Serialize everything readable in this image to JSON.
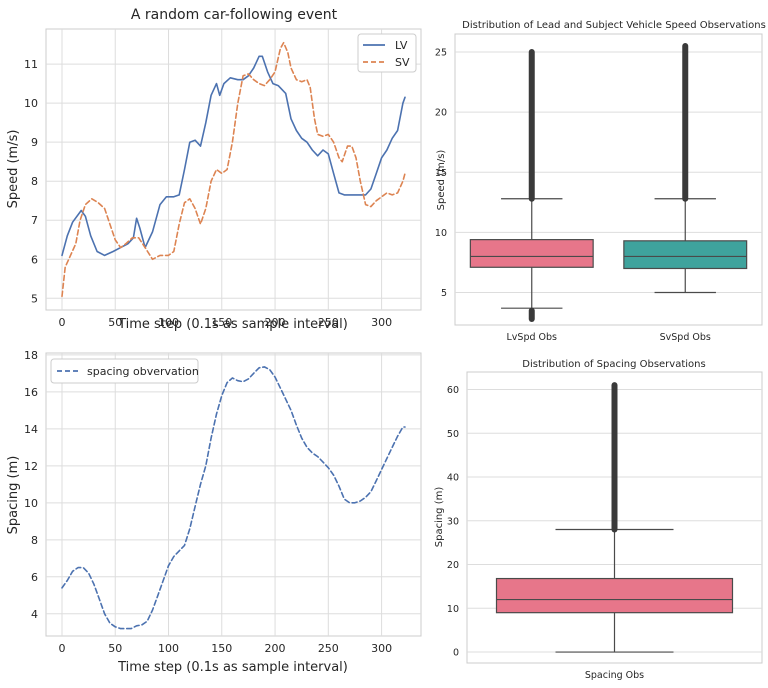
{
  "chart_data": [
    {
      "type": "line",
      "title": "A random car-following event",
      "xlabel": "Time step (0.1s as sample interval)",
      "ylabel": "Speed (m/s)",
      "xlim": [
        -15,
        337
      ],
      "ylim": [
        4.7,
        11.9
      ],
      "xticks": [
        0,
        50,
        100,
        150,
        200,
        250,
        300
      ],
      "yticks": [
        5,
        6,
        7,
        8,
        9,
        10,
        11
      ],
      "grid": true,
      "legend": "top-right",
      "series": [
        {
          "name": "LV",
          "color": "#4c72b0",
          "dash": "solid",
          "points": [
            [
              0,
              6.1
            ],
            [
              5,
              6.6
            ],
            [
              10,
              6.95
            ],
            [
              18,
              7.25
            ],
            [
              22,
              7.1
            ],
            [
              27,
              6.6
            ],
            [
              33,
              6.2
            ],
            [
              40,
              6.1
            ],
            [
              48,
              6.2
            ],
            [
              55,
              6.3
            ],
            [
              62,
              6.4
            ],
            [
              67,
              6.55
            ],
            [
              70,
              7.05
            ],
            [
              73,
              6.8
            ],
            [
              78,
              6.3
            ],
            [
              85,
              6.7
            ],
            [
              92,
              7.4
            ],
            [
              98,
              7.6
            ],
            [
              105,
              7.6
            ],
            [
              110,
              7.65
            ],
            [
              115,
              8.3
            ],
            [
              120,
              9.0
            ],
            [
              125,
              9.05
            ],
            [
              130,
              8.9
            ],
            [
              135,
              9.5
            ],
            [
              140,
              10.2
            ],
            [
              145,
              10.5
            ],
            [
              148,
              10.2
            ],
            [
              152,
              10.5
            ],
            [
              158,
              10.65
            ],
            [
              165,
              10.6
            ],
            [
              170,
              10.6
            ],
            [
              175,
              10.7
            ],
            [
              180,
              10.9
            ],
            [
              185,
              11.2
            ],
            [
              188,
              11.2
            ],
            [
              193,
              10.8
            ],
            [
              198,
              10.5
            ],
            [
              203,
              10.45
            ],
            [
              210,
              10.25
            ],
            [
              215,
              9.6
            ],
            [
              220,
              9.3
            ],
            [
              225,
              9.1
            ],
            [
              230,
              9.0
            ],
            [
              235,
              8.8
            ],
            [
              240,
              8.65
            ],
            [
              245,
              8.8
            ],
            [
              250,
              8.7
            ],
            [
              255,
              8.2
            ],
            [
              260,
              7.7
            ],
            [
              265,
              7.65
            ],
            [
              270,
              7.65
            ],
            [
              275,
              7.65
            ],
            [
              280,
              7.65
            ],
            [
              285,
              7.65
            ],
            [
              290,
              7.8
            ],
            [
              295,
              8.2
            ],
            [
              300,
              8.6
            ],
            [
              305,
              8.8
            ],
            [
              310,
              9.1
            ],
            [
              315,
              9.3
            ],
            [
              320,
              10.0
            ],
            [
              322,
              10.15
            ]
          ]
        },
        {
          "name": "SV",
          "color": "#dd8452",
          "dash": "dashed",
          "points": [
            [
              0,
              5.05
            ],
            [
              3,
              5.8
            ],
            [
              8,
              6.1
            ],
            [
              13,
              6.4
            ],
            [
              17,
              7.0
            ],
            [
              22,
              7.4
            ],
            [
              28,
              7.55
            ],
            [
              34,
              7.45
            ],
            [
              40,
              7.3
            ],
            [
              45,
              6.9
            ],
            [
              50,
              6.5
            ],
            [
              55,
              6.3
            ],
            [
              60,
              6.4
            ],
            [
              66,
              6.55
            ],
            [
              72,
              6.55
            ],
            [
              78,
              6.3
            ],
            [
              85,
              6.0
            ],
            [
              92,
              6.1
            ],
            [
              100,
              6.1
            ],
            [
              105,
              6.2
            ],
            [
              110,
              6.9
            ],
            [
              115,
              7.45
            ],
            [
              120,
              7.55
            ],
            [
              125,
              7.3
            ],
            [
              130,
              6.9
            ],
            [
              135,
              7.3
            ],
            [
              140,
              8.0
            ],
            [
              145,
              8.3
            ],
            [
              150,
              8.2
            ],
            [
              155,
              8.3
            ],
            [
              160,
              9.0
            ],
            [
              165,
              10.0
            ],
            [
              170,
              10.7
            ],
            [
              175,
              10.75
            ],
            [
              180,
              10.6
            ],
            [
              185,
              10.5
            ],
            [
              190,
              10.45
            ],
            [
              195,
              10.6
            ],
            [
              200,
              10.8
            ],
            [
              205,
              11.4
            ],
            [
              208,
              11.55
            ],
            [
              212,
              11.3
            ],
            [
              215,
              10.9
            ],
            [
              220,
              10.6
            ],
            [
              225,
              10.55
            ],
            [
              230,
              10.6
            ],
            [
              233,
              10.4
            ],
            [
              237,
              9.6
            ],
            [
              240,
              9.2
            ],
            [
              245,
              9.15
            ],
            [
              250,
              9.2
            ],
            [
              255,
              9.0
            ],
            [
              260,
              8.6
            ],
            [
              263,
              8.5
            ],
            [
              268,
              8.9
            ],
            [
              272,
              8.9
            ],
            [
              276,
              8.6
            ],
            [
              280,
              8.0
            ],
            [
              285,
              7.4
            ],
            [
              290,
              7.35
            ],
            [
              295,
              7.5
            ],
            [
              300,
              7.6
            ],
            [
              305,
              7.7
            ],
            [
              310,
              7.65
            ],
            [
              315,
              7.7
            ],
            [
              320,
              8.0
            ],
            [
              322,
              8.2
            ]
          ]
        }
      ]
    },
    {
      "type": "box",
      "title": "Distribution of Lead and Subject Vehicle Speed Observations",
      "xlabel": "",
      "ylabel": "Speed (m/s)",
      "ylim": [
        2.3,
        26.5
      ],
      "yticks": [
        5,
        10,
        15,
        20,
        25
      ],
      "grid": true,
      "categories": [
        "LvSpd Obs",
        "SvSpd Obs"
      ],
      "boxes": [
        {
          "category": "LvSpd Obs",
          "color": "#e7768a",
          "whisker_low": 3.7,
          "q1": 7.1,
          "median": 8.0,
          "q3": 9.4,
          "whisker_high": 12.8,
          "outliers_low": [
            2.8,
            3.5
          ],
          "outliers_high": [
            12.8,
            25.0
          ]
        },
        {
          "category": "SvSpd Obs",
          "color": "#3fa39d",
          "whisker_low": 5.0,
          "q1": 7.0,
          "median": 8.0,
          "q3": 9.3,
          "whisker_high": 12.8,
          "outliers_low": [],
          "outliers_high": [
            12.8,
            25.5
          ]
        }
      ]
    },
    {
      "type": "line",
      "title": "",
      "xlabel": "Time step (0.1s as sample interval)",
      "ylabel": "Spacing (m)",
      "xlim": [
        -15,
        337
      ],
      "ylim": [
        2.8,
        18.1
      ],
      "xticks": [
        0,
        50,
        100,
        150,
        200,
        250,
        300
      ],
      "yticks": [
        4,
        6,
        8,
        10,
        12,
        14,
        16,
        18
      ],
      "grid": true,
      "legend": "top-left",
      "series": [
        {
          "name": "spacing obvervation",
          "color": "#4c72b0",
          "dash": "dashed",
          "points": [
            [
              0,
              5.4
            ],
            [
              5,
              5.8
            ],
            [
              10,
              6.3
            ],
            [
              15,
              6.5
            ],
            [
              20,
              6.5
            ],
            [
              25,
              6.2
            ],
            [
              30,
              5.6
            ],
            [
              35,
              4.8
            ],
            [
              40,
              4.0
            ],
            [
              45,
              3.5
            ],
            [
              50,
              3.3
            ],
            [
              55,
              3.2
            ],
            [
              60,
              3.2
            ],
            [
              65,
              3.2
            ],
            [
              70,
              3.35
            ],
            [
              75,
              3.4
            ],
            [
              80,
              3.6
            ],
            [
              85,
              4.2
            ],
            [
              90,
              5.0
            ],
            [
              95,
              5.8
            ],
            [
              100,
              6.6
            ],
            [
              105,
              7.1
            ],
            [
              110,
              7.4
            ],
            [
              115,
              7.7
            ],
            [
              120,
              8.6
            ],
            [
              125,
              9.8
            ],
            [
              130,
              11.0
            ],
            [
              135,
              12.0
            ],
            [
              140,
              13.5
            ],
            [
              145,
              14.8
            ],
            [
              150,
              15.8
            ],
            [
              155,
              16.5
            ],
            [
              160,
              16.75
            ],
            [
              165,
              16.6
            ],
            [
              170,
              16.55
            ],
            [
              175,
              16.7
            ],
            [
              180,
              17.0
            ],
            [
              185,
              17.3
            ],
            [
              190,
              17.35
            ],
            [
              195,
              17.2
            ],
            [
              200,
              16.8
            ],
            [
              205,
              16.2
            ],
            [
              210,
              15.6
            ],
            [
              215,
              15.0
            ],
            [
              220,
              14.2
            ],
            [
              225,
              13.5
            ],
            [
              230,
              13.0
            ],
            [
              235,
              12.7
            ],
            [
              240,
              12.5
            ],
            [
              245,
              12.2
            ],
            [
              250,
              11.9
            ],
            [
              255,
              11.5
            ],
            [
              260,
              10.9
            ],
            [
              265,
              10.2
            ],
            [
              270,
              10.0
            ],
            [
              275,
              10.0
            ],
            [
              280,
              10.1
            ],
            [
              285,
              10.3
            ],
            [
              290,
              10.6
            ],
            [
              295,
              11.2
            ],
            [
              300,
              11.8
            ],
            [
              305,
              12.4
            ],
            [
              310,
              13.0
            ],
            [
              315,
              13.6
            ],
            [
              320,
              14.1
            ],
            [
              322,
              14.1
            ]
          ]
        }
      ]
    },
    {
      "type": "box",
      "title": "Distribution of Spacing Observations",
      "xlabel": "",
      "ylabel": "Spacing (m)",
      "ylim": [
        -2.5,
        64
      ],
      "yticks": [
        0,
        10,
        20,
        30,
        40,
        50,
        60
      ],
      "grid": true,
      "categories": [
        "Spacing Obs"
      ],
      "boxes": [
        {
          "category": "Spacing Obs",
          "color": "#e7768a",
          "whisker_low": 0,
          "q1": 9.0,
          "median": 12.0,
          "q3": 16.8,
          "whisker_high": 28.0,
          "outliers_low": [],
          "outliers_high": [
            28.0,
            61.0
          ]
        }
      ]
    }
  ]
}
